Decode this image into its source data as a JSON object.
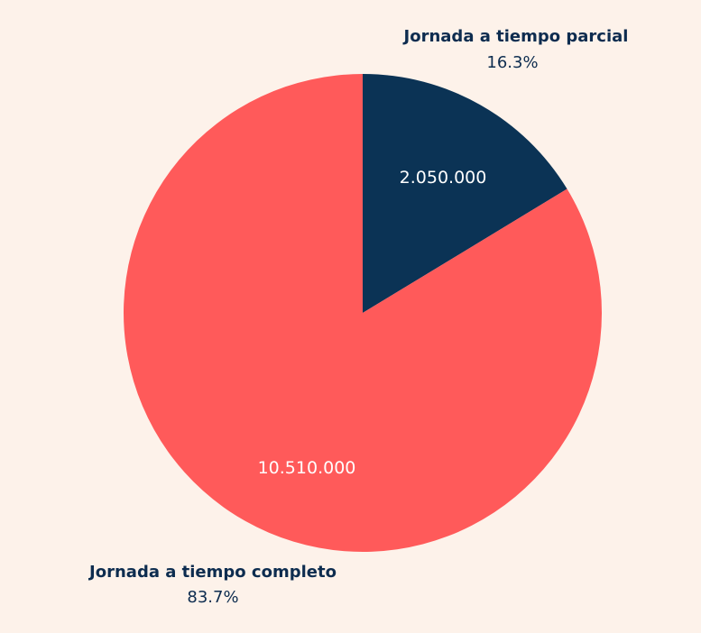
{
  "chart_data": {
    "type": "pie",
    "title": "",
    "start_angle_deg": 0,
    "direction": "clockwise",
    "legend": "none",
    "slices": [
      {
        "label": "Jornada a tiempo parcial",
        "value": 2050000,
        "value_label": "2.050.000",
        "percent": 16.3,
        "percent_label": "16.3%",
        "color": "#0b3355"
      },
      {
        "label": "Jornada a tiempo completo",
        "value": 10510000,
        "value_label": "10.510.000",
        "percent": 83.7,
        "percent_label": "83.7%",
        "color": "#ff5a5a"
      }
    ]
  },
  "colors": {
    "background": "#fdf2ea",
    "label_text": "#0d2c4f",
    "inner_text": "#ffffff"
  }
}
